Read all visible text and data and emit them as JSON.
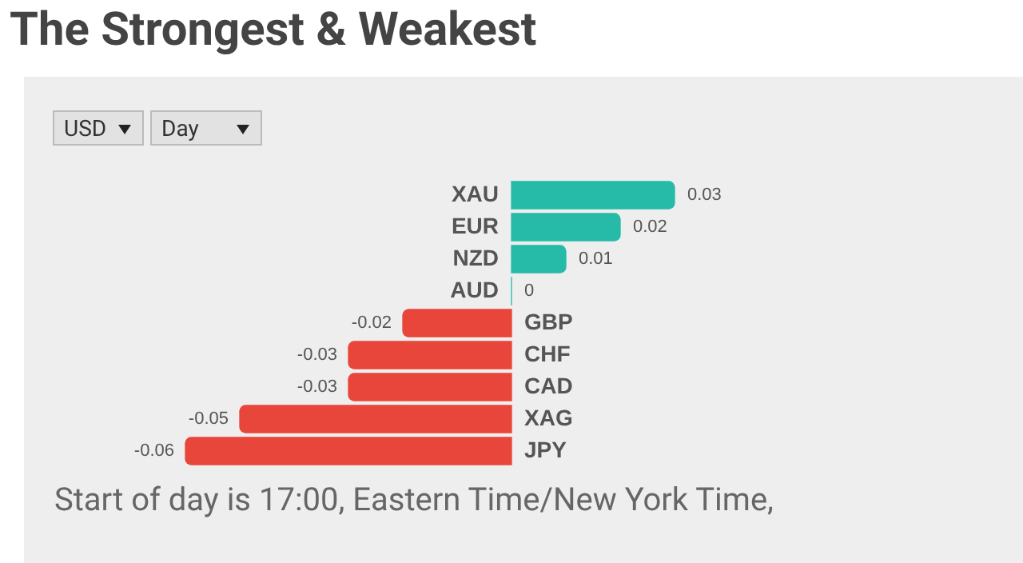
{
  "chart_data": {
    "type": "bar",
    "orientation": "horizontal",
    "title": "The Strongest & Weakest",
    "categories": [
      "XAU",
      "EUR",
      "NZD",
      "AUD",
      "GBP",
      "CHF",
      "CAD",
      "XAG",
      "JPY"
    ],
    "values": [
      0.03,
      0.02,
      0.01,
      0,
      -0.02,
      -0.03,
      -0.03,
      -0.05,
      -0.06
    ],
    "colors": [
      "#26bba9",
      "#26bba9",
      "#26bba9",
      "#26bba9",
      "#e8463a",
      "#e8463a",
      "#e8463a",
      "#e8463a",
      "#e8463a"
    ],
    "data_labels": true,
    "legend": false,
    "annotations": [
      "USD",
      "Day",
      "Start of day is 17:00, Eastern Time/New York Time,"
    ]
  }
}
